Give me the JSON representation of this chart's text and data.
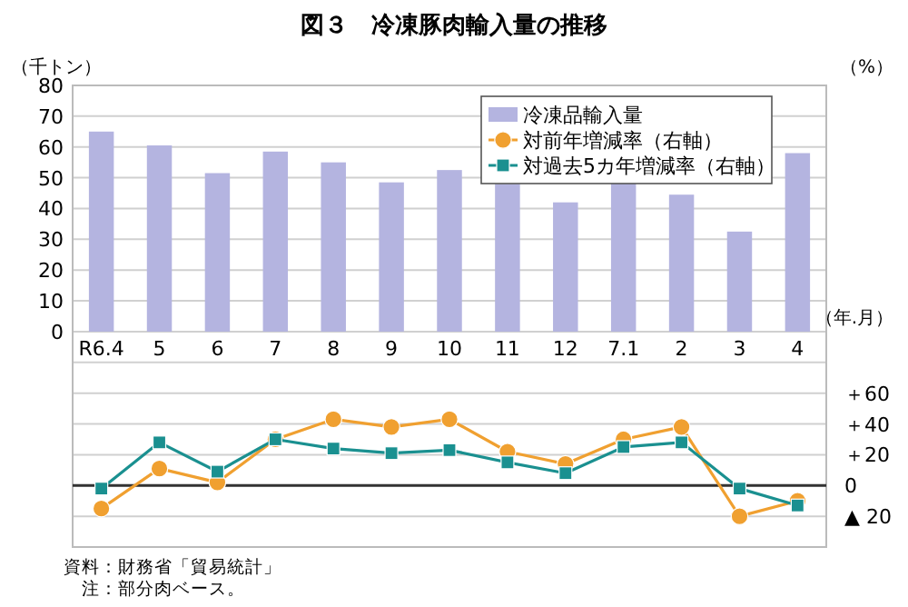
{
  "chart_data": {
    "type": "bar",
    "title": "図３　冷凍豚肉輸入量の推移",
    "ylabel": "（千トン）",
    "y2label": "（%）",
    "xlabel": "（年.月）",
    "categories": [
      "R6.4",
      "5",
      "6",
      "7",
      "8",
      "9",
      "10",
      "11",
      "12",
      "7.1",
      "2",
      "3",
      "4"
    ],
    "series": [
      {
        "name": "冷凍品輸入量",
        "color": "#b4b4e0",
        "values": [
          65,
          60.5,
          51.5,
          58.5,
          55,
          48.5,
          52.5,
          48,
          42,
          48.5,
          44.5,
          32.5,
          58
        ]
      },
      {
        "name": "対前年増減率（右軸）",
        "type": "line",
        "axis": "y2",
        "marker": "circle",
        "color": "#f0a030",
        "values": [
          -15,
          11,
          2,
          30,
          43,
          38,
          43,
          22,
          14,
          30,
          38,
          -20,
          -10
        ]
      },
      {
        "name": "対過去5カ年増減率（右軸）",
        "type": "line",
        "axis": "y2",
        "marker": "square",
        "color": "#1a9090",
        "values": [
          -2,
          28,
          9,
          30,
          24,
          21,
          23,
          15,
          8,
          25,
          28,
          -2,
          -13
        ]
      }
    ],
    "ylim": [
      -70,
      80
    ],
    "yticks": [
      0,
      10,
      20,
      30,
      40,
      50,
      60,
      70,
      80
    ],
    "y2lim": [
      -40,
      260
    ],
    "y2ticks": [
      {
        "value": -20,
        "label": "▲ 20"
      },
      0,
      {
        "value": 20,
        "label": "＋20"
      },
      {
        "value": 40,
        "label": "＋40"
      },
      {
        "value": 60,
        "label": "＋60"
      },
      {
        "value": 80,
        "label": null
      }
    ],
    "ref_lines": [
      {
        "axis": "y2",
        "value": 0,
        "color": "#333333"
      }
    ],
    "grid": "y",
    "legend": "top right",
    "annotations": [
      "資料：財務省「貿易統計」",
      "注：部分肉ベース。"
    ]
  }
}
